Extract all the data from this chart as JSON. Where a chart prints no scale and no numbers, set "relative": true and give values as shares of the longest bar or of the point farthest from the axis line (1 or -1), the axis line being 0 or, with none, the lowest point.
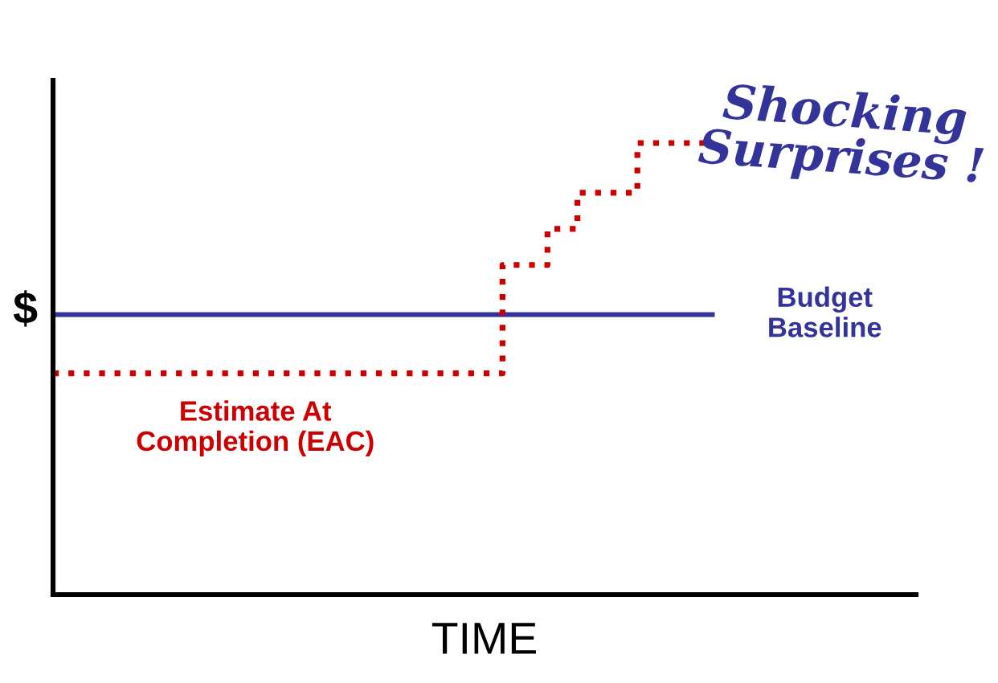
{
  "chart_data": {
    "type": "line",
    "relative": true,
    "title": "Shocking Surprises !",
    "xlabel": "TIME",
    "ylabel": "$",
    "tick_labels": false,
    "categories": [
      null,
      null,
      null,
      null,
      null,
      null,
      null,
      null,
      null,
      null,
      null,
      null,
      null,
      null,
      null,
      null,
      null,
      null,
      null,
      null,
      null,
      null,
      null,
      null,
      null,
      null,
      null,
      null,
      null,
      null,
      null,
      null,
      null,
      null,
      null,
      null,
      null,
      null,
      null,
      null,
      null,
      null,
      null,
      null,
      null
    ],
    "series": [
      {
        "name": "Budget Baseline",
        "color": "#333399",
        "line_style": "solid",
        "values": [
          0.62,
          0.62,
          0.62,
          0.62,
          0.62,
          0.62,
          0.62,
          0.62,
          0.62,
          0.62,
          0.62,
          0.62,
          0.62,
          0.62,
          0.62,
          0.62,
          0.62,
          0.62,
          0.62,
          0.62,
          0.62,
          0.62,
          0.62,
          0.62,
          0.62,
          0.62,
          0.62,
          0.62,
          0.62,
          0.62,
          0.62,
          0.62,
          0.62,
          0.62,
          0.62,
          0.62,
          0.62,
          0.62,
          0.62,
          0.62,
          0.62,
          0.62,
          0.62,
          0.62,
          0.62
        ]
      },
      {
        "name": "Estimate At Completion (EAC)",
        "color": "#cc0000",
        "type": "step",
        "line_style": "dotted",
        "values": [
          0.49,
          0.49,
          0.49,
          0.49,
          0.49,
          0.49,
          0.49,
          0.49,
          0.49,
          0.49,
          0.49,
          0.49,
          0.49,
          0.49,
          0.49,
          0.49,
          0.49,
          0.49,
          0.49,
          0.49,
          0.49,
          0.49,
          0.49,
          0.49,
          0.49,
          0.49,
          0.49,
          0.49,
          0.49,
          0.49,
          0.73,
          0.73,
          0.73,
          0.81,
          0.81,
          0.89,
          0.89,
          0.89,
          0.89,
          1,
          1,
          1,
          1,
          1,
          1
        ]
      }
    ]
  }
}
